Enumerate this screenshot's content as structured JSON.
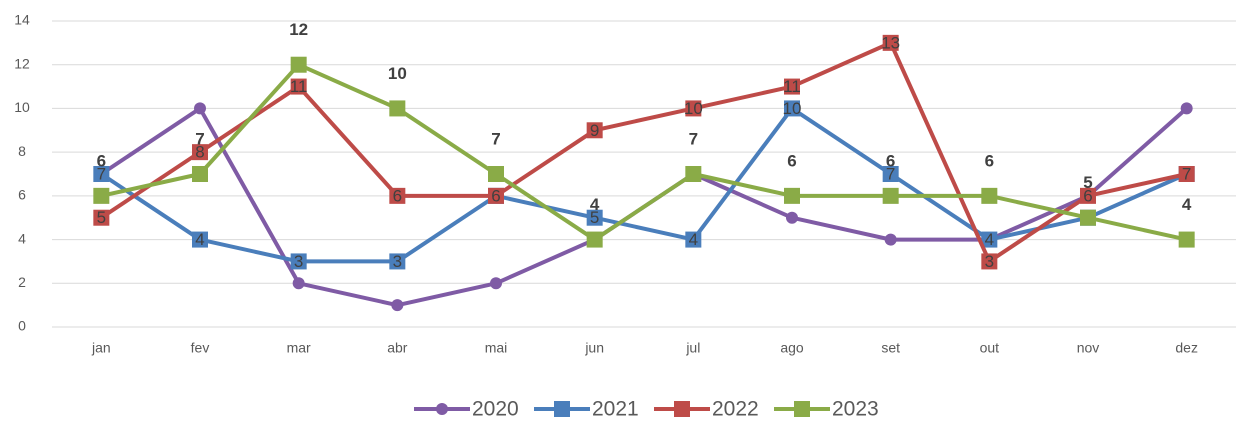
{
  "chart_data": {
    "type": "line",
    "categories": [
      "jan",
      "fev",
      "mar",
      "abr",
      "mai",
      "jun",
      "jul",
      "ago",
      "set",
      "out",
      "nov",
      "dez"
    ],
    "ylim": [
      0,
      14
    ],
    "yticks": [
      0,
      2,
      4,
      6,
      8,
      10,
      12,
      14
    ],
    "grid": true,
    "legend": "bottom",
    "series": [
      {
        "name": "2020",
        "color": "#7f5ba5",
        "marker": "circle",
        "values": [
          7,
          10,
          2,
          1,
          2,
          4,
          7,
          5,
          4,
          4,
          6,
          10
        ]
      },
      {
        "name": "2021",
        "color": "#4a7ebb",
        "marker": "square",
        "labels": "center",
        "values": [
          7,
          4,
          3,
          3,
          6,
          5,
          4,
          10,
          7,
          4,
          5,
          7
        ]
      },
      {
        "name": "2022",
        "color": "#be4b48",
        "marker": "square",
        "labels": "center",
        "values": [
          5,
          8,
          11,
          6,
          6,
          9,
          10,
          11,
          13,
          3,
          6,
          7
        ]
      },
      {
        "name": "2023",
        "color": "#8aab47",
        "marker": "square",
        "labels": "above",
        "values": [
          6,
          7,
          12,
          10,
          7,
          4,
          7,
          6,
          6,
          6,
          5,
          4
        ]
      }
    ]
  }
}
